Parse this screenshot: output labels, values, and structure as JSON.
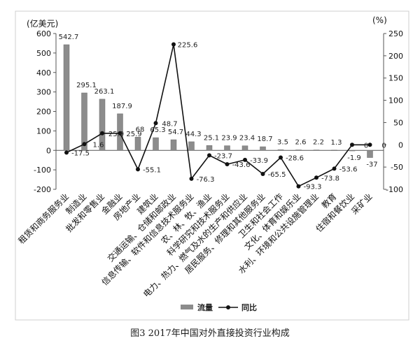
{
  "chart_data": {
    "type": "bar",
    "title": "图3 2017年中国对外直接投资行业构成",
    "xlabel": "",
    "ylabel": "(亿美元)",
    "ylabel_right": "(%)",
    "categories": [
      "租赁和商务服务业",
      "制造业",
      "批发和零售业",
      "金融业",
      "房地产业",
      "建筑业",
      "交通运输、仓储和邮政业",
      "信息传输、软件和信息技术服务业",
      "农、林、牧、渔业",
      "科学研究和技术服务业",
      "电力、热力、燃气及水的生产和供应业",
      "居民服务、修理和其他服务业",
      "卫生和社会工作",
      "文化、体育和娱乐业",
      "水利、环境和公共设施管理业",
      "教育",
      "住宿和餐饮业",
      "采矿业"
    ],
    "series": [
      {
        "name": "流量",
        "type": "bar",
        "axis": "left",
        "color": "#8c8c8c",
        "values": [
          542.7,
          295.1,
          263.1,
          187.9,
          68,
          65.3,
          54.7,
          44.3,
          25.1,
          23.9,
          23.4,
          18.7,
          3.5,
          2.6,
          2.2,
          1.3,
          -1.9,
          -37
        ]
      },
      {
        "name": "同比",
        "type": "line",
        "axis": "right",
        "color": "#111111",
        "values": [
          -17.5,
          1.6,
          25.9,
          25.9,
          -55.1,
          48.7,
          225.6,
          -76.3,
          -23.7,
          -43.6,
          -33.9,
          -65.5,
          -28.6,
          -93.3,
          -73.8,
          -53.6,
          0,
          0
        ]
      }
    ],
    "ylim": [
      -200,
      600
    ],
    "ylim_right": [
      -100,
      250
    ],
    "yticks": [
      600,
      500,
      400,
      300,
      200,
      100,
      0,
      -100,
      -200
    ],
    "yticks_right": [
      250,
      200,
      150,
      100,
      50,
      0,
      -50,
      -100
    ],
    "legend": "bottom",
    "grid": false
  }
}
